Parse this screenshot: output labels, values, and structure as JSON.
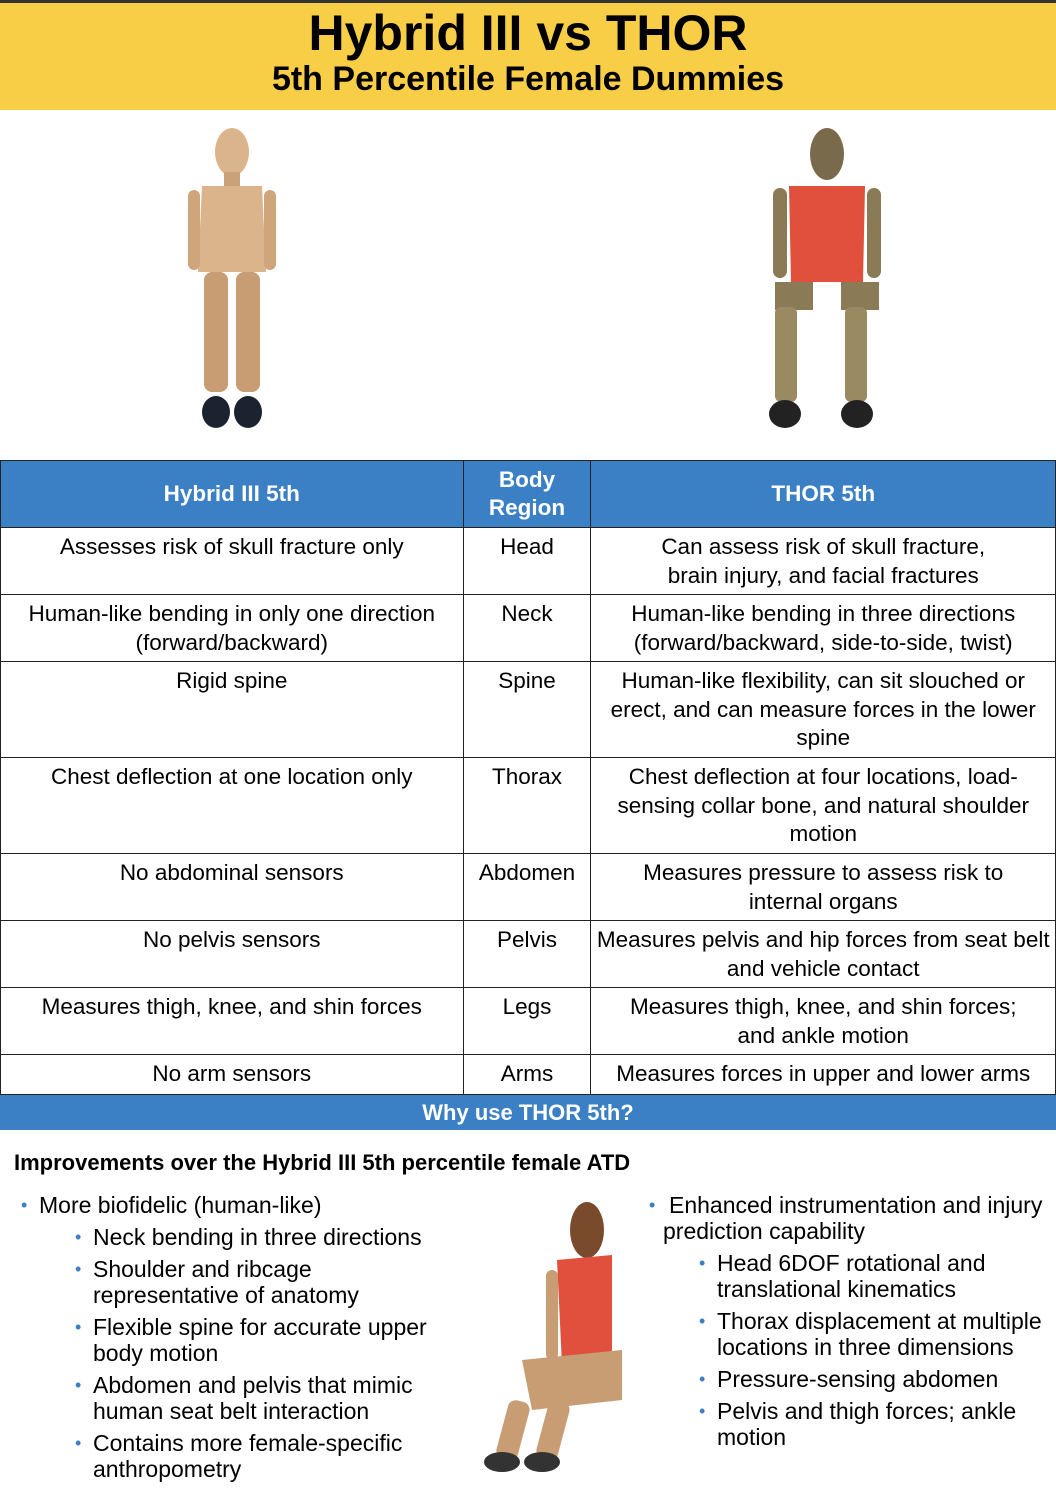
{
  "header": {
    "title": "Hybrid III vs THOR",
    "subtitle": "5th Percentile Female Dummies"
  },
  "table": {
    "headers": [
      "Hybrid III 5th",
      "Body Region",
      "THOR 5th"
    ],
    "rows": [
      [
        "Assesses risk of skull fracture only",
        "Head",
        "Can assess risk of skull fracture, brain injury, and facial fractures"
      ],
      [
        "Human-like bending in only one direction (forward/backward)",
        "Neck",
        "Human-like bending in three directions (forward/backward, side-to-side, twist)"
      ],
      [
        "Rigid spine",
        "Spine",
        "Human-like flexibility, can sit slouched or erect, and can measure forces in the lower spine"
      ],
      [
        "Chest deflection at one location only",
        "Thorax",
        "Chest deflection at four locations, load-sensing collar bone, and natural shoulder motion"
      ],
      [
        "No abdominal sensors",
        "Abdomen",
        "Measures pressure to assess risk to internal organs"
      ],
      [
        "No pelvis sensors",
        "Pelvis",
        "Measures pelvis and hip forces from seat belt and vehicle contact"
      ],
      [
        "Measures thigh, knee, and shin forces",
        "Legs",
        "Measures thigh, knee, and shin forces; and ankle motion"
      ],
      [
        "No arm sensors",
        "Arms",
        "Measures forces in upper and lower arms"
      ]
    ]
  },
  "why": {
    "title": "Why use THOR 5th?",
    "subtitle": "Improvements over the Hybrid III 5th percentile female ATD",
    "left": {
      "main": "More biofidelic (human-like)",
      "items": [
        "Neck bending in three directions",
        "Shoulder and ribcage representative of anatomy",
        "Flexible spine for accurate upper body motion",
        "Abdomen and pelvis that mimic human seat belt interaction",
        "Contains more female-specific anthropometry"
      ]
    },
    "right": {
      "main": "Enhanced instrumentation and injury prediction capability",
      "items": [
        "Head 6DOF rotational and translational kinematics",
        "Thorax displacement at multiple locations in three dimensions",
        "Pressure-sensing abdomen",
        "Pelvis and thigh forces; ankle motion"
      ]
    }
  },
  "colors": {
    "header_bg": "#f7ce46",
    "accent": "#3b80c4",
    "thor_vest": "#e0503c"
  }
}
